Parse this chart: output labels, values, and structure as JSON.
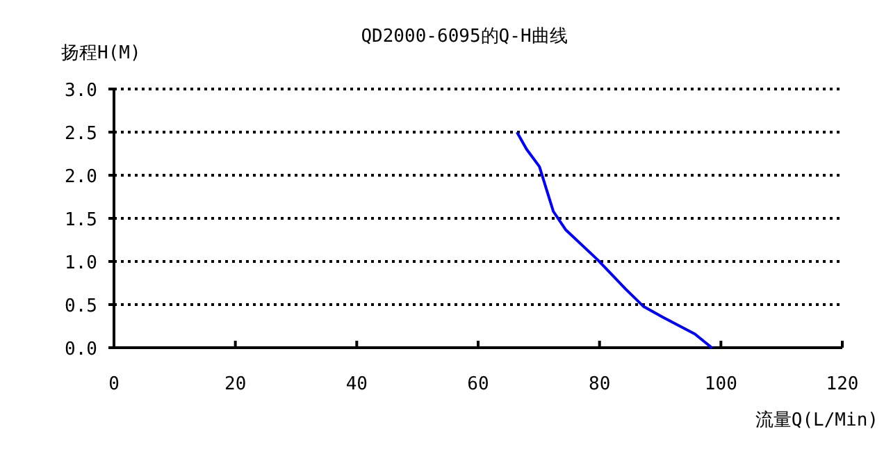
{
  "chart_data": {
    "type": "line",
    "title": "QD2000-6095的Q-H曲线",
    "xlabel": "流量Q(L/Min)",
    "ylabel": "扬程H(M)",
    "series": [
      {
        "color": "#0000ff",
        "x": [
          66.4,
          68.0,
          70.1,
          71.2,
          72.4,
          74.4,
          79.7,
          84.3,
          87.2,
          90.5,
          95.7,
          98.5
        ],
        "values": [
          2.5,
          2.3,
          2.1,
          1.85,
          1.58,
          1.37,
          1.02,
          0.68,
          0.48,
          0.35,
          0.16,
          0.0
        ]
      }
    ],
    "xlim": [
      0,
      120
    ],
    "xticks": [
      0,
      20,
      40,
      60,
      80,
      100,
      120
    ],
    "ylim": [
      0,
      3
    ],
    "yticks": [
      {
        "value": 0,
        "label": "0.0"
      },
      {
        "value": 0.5,
        "label": "0.5"
      },
      {
        "value": 1,
        "label": "1.0"
      },
      {
        "value": 1.5,
        "label": "1.5"
      },
      {
        "value": 2,
        "label": "2.0"
      },
      {
        "value": 2.5,
        "label": "2.5"
      },
      {
        "value": 3,
        "label": "3.0"
      }
    ],
    "grid": "y",
    "marker": "none",
    "line_style": "solid"
  }
}
